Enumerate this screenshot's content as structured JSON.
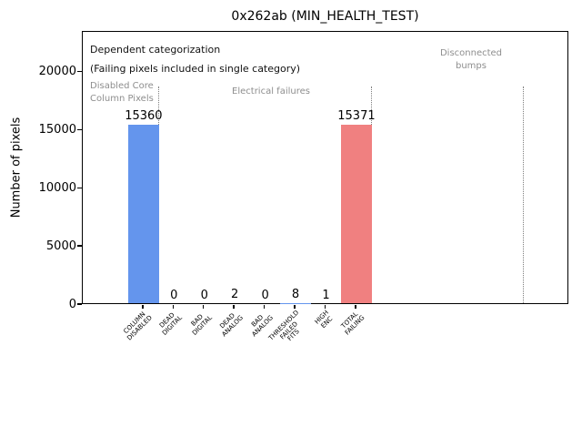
{
  "title": "0x262ab (MIN_HEALTH_TEST)",
  "y_axis_label": "Number of pixels",
  "annotations": {
    "categorization_line1": "Dependent categorization",
    "categorization_line2": "(Failing pixels included in single category)",
    "section_disabled": "Disabled Core\nColumn Pixels",
    "section_electrical": "Electrical failures",
    "section_disconnected": "Disconnected\nbumps"
  },
  "colors": {
    "bar_blue": "#6495ed",
    "bar_red": "#f08080",
    "annotation_gray": "#8e8e8e",
    "separator_gray": "#7f7f7f"
  },
  "chart_data": {
    "type": "bar",
    "title": "0x262ab (MIN_HEALTH_TEST)",
    "ylabel": "Number of pixels",
    "xlabel": "",
    "categories": [
      "COLUMN\nDISABLED",
      "DEAD\nDIGITAL",
      "BAD\nDIGITAL",
      "DEAD\nANALOG",
      "BAD\nANALOG",
      "THRESHOLD\nFAILED\nFITS",
      "HIGH\nENC",
      "TOTAL\nFAILING"
    ],
    "values": [
      15360,
      0,
      0,
      2,
      0,
      8,
      1,
      15371
    ],
    "value_labels": [
      "15360",
      "0",
      "0",
      "2",
      "0",
      "8",
      "1",
      "15371"
    ],
    "bar_colors": [
      "#6495ed",
      "#6495ed",
      "#6495ed",
      "#6495ed",
      "#6495ed",
      "#6495ed",
      "#6495ed",
      "#f08080"
    ],
    "yticks": [
      0,
      5000,
      10000,
      15000,
      20000
    ],
    "ytick_labels": [
      "0",
      "5000",
      "10000",
      "15000",
      "20000"
    ],
    "ylim": [
      0,
      23500
    ],
    "xlim_category_units": [
      -2,
      14
    ],
    "separators_x": [
      0.5,
      7.5,
      12.5
    ],
    "grid": false,
    "legend": false,
    "sections": [
      {
        "label": "Disabled Core\nColumn Pixels",
        "from_x": -2,
        "to_x": 0.5
      },
      {
        "label": "Electrical failures",
        "from_x": 0.5,
        "to_x": 7.5
      },
      {
        "label": "Disconnected\nbumps",
        "from_x": 7.5,
        "to_x": 12.5
      }
    ]
  }
}
